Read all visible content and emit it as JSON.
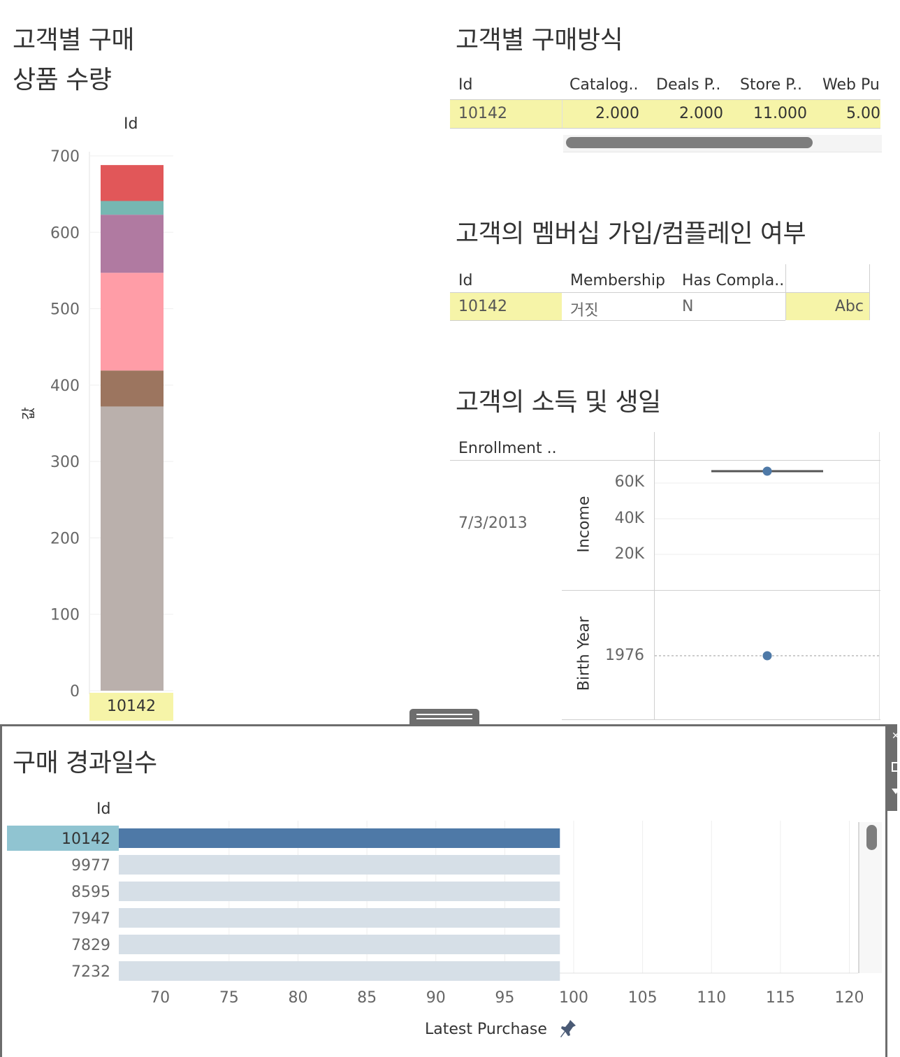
{
  "stacked": {
    "title1": "고객별 구매",
    "title2": "상품 수량",
    "column_header": "Id",
    "y_axis_label": "값",
    "id_label": "10142"
  },
  "purchase_method": {
    "title": "고객별 구매방식",
    "headers": [
      "Id",
      "Catalog..",
      "Deals P..",
      "Store P..",
      "Web Pu"
    ],
    "row": [
      "10142",
      "2.000",
      "2.000",
      "11.000",
      "5.00"
    ]
  },
  "membership": {
    "title": "고객의 멤버십 가입/컴플레인 여부",
    "headers": [
      "Id",
      "Membership",
      "Has Compla.."
    ],
    "row": [
      "10142",
      "거짓",
      "N",
      "Abc"
    ]
  },
  "income_birth": {
    "title": "고객의 소득 및 생일",
    "header": "Enrollment ..",
    "date": "7/3/2013",
    "income_label": "Income",
    "birth_label": "Birth Year",
    "income_ticks": [
      "60K",
      "40K",
      "20K"
    ],
    "birth_tick": "1976"
  },
  "elapsed": {
    "title": "구매 경과일수",
    "id_header": "Id",
    "axis_title": "Latest Purchase"
  },
  "chart_data": [
    {
      "type": "bar",
      "stacked": true,
      "categories": [
        "10142"
      ],
      "series": [
        {
          "values": [
            372
          ],
          "color": "#bab0ac"
        },
        {
          "values": [
            47
          ],
          "color": "#9c755f"
        },
        {
          "values": [
            128
          ],
          "color": "#ff9da7"
        },
        {
          "values": [
            76
          ],
          "color": "#b07aa1"
        },
        {
          "values": [
            18
          ],
          "color": "#76b7b2"
        },
        {
          "values": [
            47
          ],
          "color": "#e15759"
        }
      ],
      "ylabel": "값",
      "ylim": [
        0,
        700
      ],
      "yticks": [
        0,
        100,
        200,
        300,
        400,
        500,
        600,
        700
      ]
    },
    {
      "type": "scatter",
      "ylabel": "Income",
      "yticks": [
        "20K",
        "40K",
        "60K"
      ],
      "points": [
        {
          "y": 66000
        }
      ]
    },
    {
      "type": "scatter",
      "ylabel": "Birth Year",
      "yticks": [
        "1976"
      ],
      "points": [
        {
          "y": 1976
        }
      ]
    },
    {
      "type": "bar",
      "orientation": "horizontal",
      "categories": [
        "10142",
        "9977",
        "8595",
        "7947",
        "7829",
        "7232"
      ],
      "values": [
        99,
        99,
        99,
        99,
        99,
        99
      ],
      "highlight": "10142",
      "highlight_color": "#4e79a7",
      "other_color": "#d6dfe7",
      "xlabel": "Latest Purchase",
      "xlim": [
        67,
        122
      ],
      "xticks": [
        70,
        75,
        80,
        85,
        90,
        95,
        100,
        105,
        110,
        115,
        120
      ]
    }
  ]
}
